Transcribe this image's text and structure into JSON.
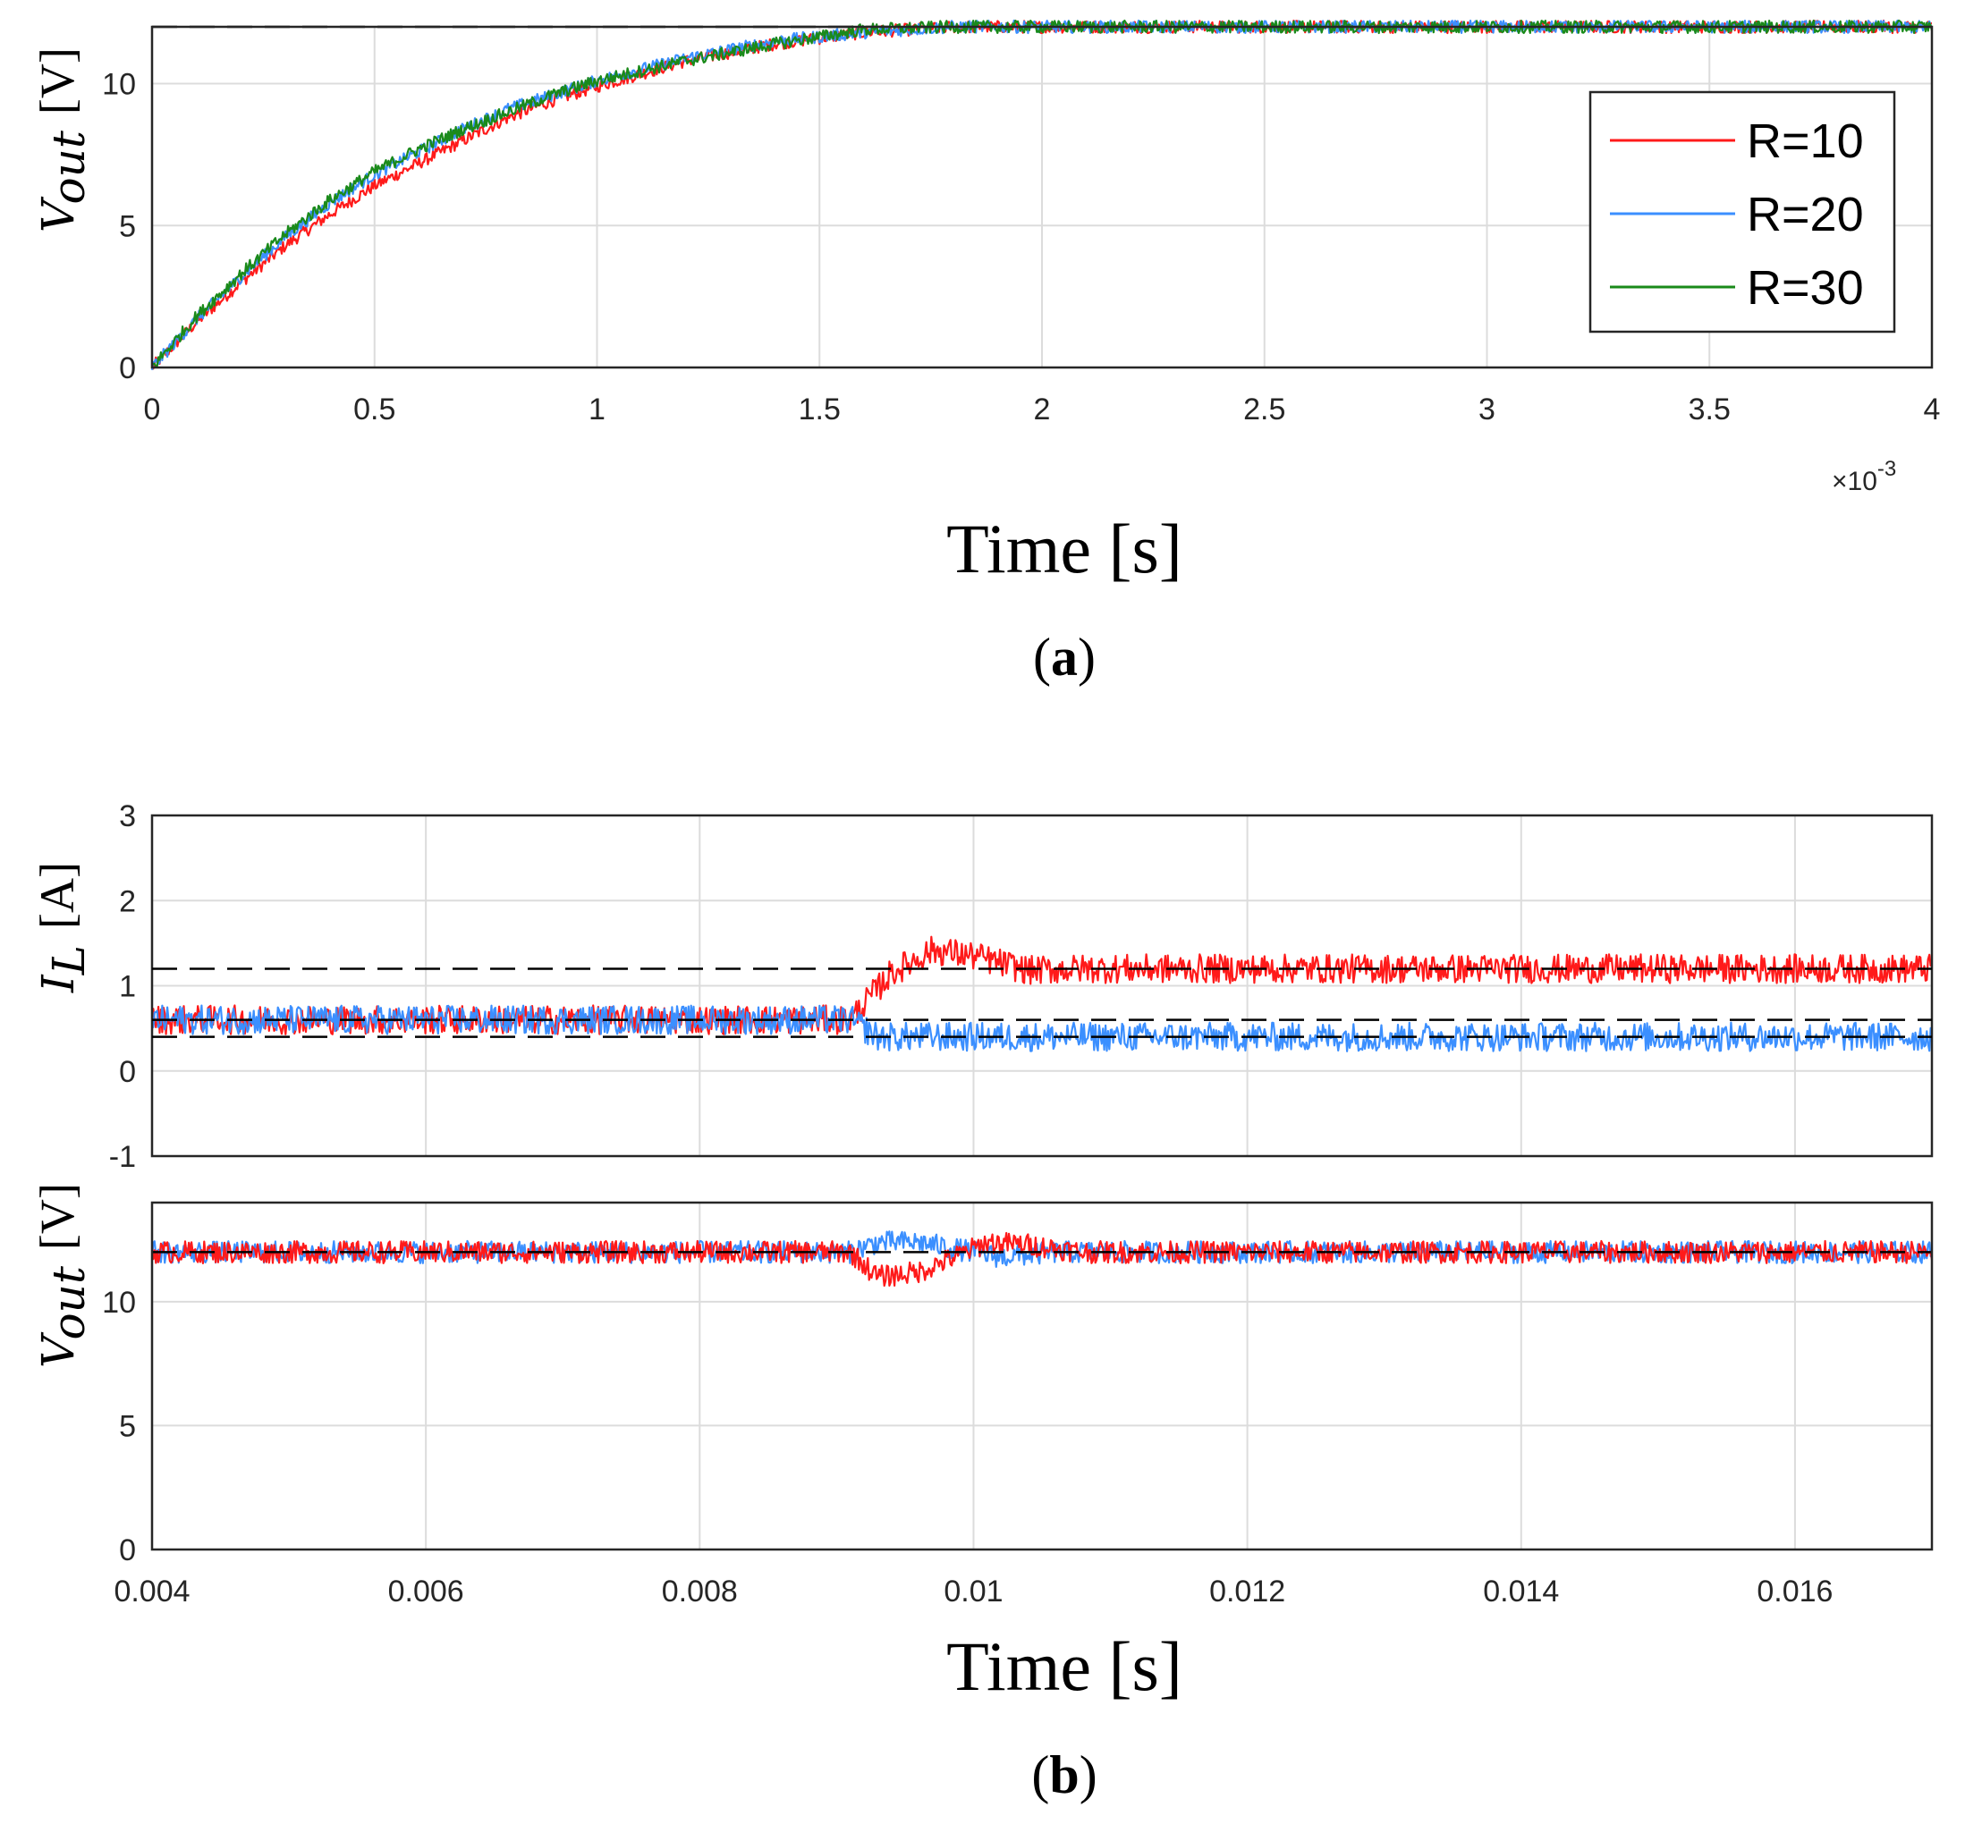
{
  "colors": {
    "red": "#ff1a1a",
    "blue": "#3b8fff",
    "green": "#1a8a1a",
    "ref": "#000000",
    "grid": "#dcdcdc"
  },
  "chart_data": [
    {
      "id": "a",
      "type": "line",
      "caption_letter": "a",
      "xlabel": "Time [s]",
      "ylabel_main": "V",
      "ylabel_sub": "out",
      "ylabel_unit": "[V]",
      "x_scale_label": "×10",
      "x_scale_exp": "-3",
      "xlim": [
        0,
        4
      ],
      "ylim": [
        0,
        12
      ],
      "xticks": [
        0,
        0.5,
        1,
        1.5,
        2,
        2.5,
        3,
        3.5,
        4
      ],
      "xtick_labels": [
        "0",
        "0.5",
        "1",
        "1.5",
        "2",
        "2.5",
        "3",
        "3.5",
        "4"
      ],
      "yticks": [
        0,
        5,
        10
      ],
      "ytick_labels": [
        "0",
        "5",
        "10"
      ],
      "grid": true,
      "legend_position": "top-right",
      "reference_lines": [
        12
      ],
      "series": [
        {
          "name": "R=10",
          "color": "red",
          "x": [
            0,
            0.1,
            0.2,
            0.3,
            0.4,
            0.5,
            0.6,
            0.7,
            0.8,
            0.9,
            1.0,
            1.2,
            1.4,
            1.6,
            1.8,
            2.0,
            4.0
          ],
          "values": [
            0,
            1.6,
            3.0,
            4.3,
            5.4,
            6.4,
            7.2,
            8.0,
            8.8,
            9.4,
            9.9,
            10.8,
            11.4,
            11.8,
            12.0,
            12.0,
            12.0
          ]
        },
        {
          "name": "R=20",
          "color": "blue",
          "x": [
            0,
            0.1,
            0.2,
            0.3,
            0.4,
            0.5,
            0.6,
            0.7,
            0.8,
            0.9,
            1.0,
            1.2,
            1.4,
            1.6,
            1.8,
            2.0,
            4.0
          ],
          "values": [
            0,
            1.7,
            3.2,
            4.6,
            5.8,
            6.8,
            7.6,
            8.4,
            9.1,
            9.6,
            10.1,
            10.9,
            11.5,
            11.8,
            12.0,
            12.0,
            12.0
          ]
        },
        {
          "name": "R=30",
          "color": "green",
          "x": [
            0,
            0.1,
            0.2,
            0.3,
            0.4,
            0.5,
            0.6,
            0.7,
            0.8,
            0.9,
            1.0,
            1.2,
            1.4,
            1.6,
            1.8,
            2.0,
            4.0
          ],
          "values": [
            0,
            1.8,
            3.3,
            4.7,
            5.9,
            6.9,
            7.7,
            8.4,
            9.0,
            9.6,
            10.1,
            10.8,
            11.4,
            11.9,
            12.0,
            12.0,
            12.0
          ]
        }
      ]
    },
    {
      "id": "b-top",
      "type": "line",
      "ylabel_main": "I",
      "ylabel_sub": "L",
      "ylabel_unit": "[A]",
      "xlim": [
        0.004,
        0.017
      ],
      "ylim": [
        -1,
        3
      ],
      "xticks": [
        0.004,
        0.006,
        0.008,
        0.01,
        0.012,
        0.014,
        0.016
      ],
      "yticks": [
        -1,
        0,
        1,
        2,
        3
      ],
      "ytick_labels": [
        "-1",
        "0",
        "1",
        "2",
        "3"
      ],
      "grid": true,
      "reference_lines": [
        1.2,
        0.6,
        0.4
      ],
      "series": [
        {
          "name": "R=10",
          "color": "red",
          "x": [
            0.004,
            0.0091,
            0.0094,
            0.0097,
            0.01,
            0.0104,
            0.0108,
            0.017
          ],
          "values": [
            0.6,
            0.6,
            1.15,
            1.42,
            1.35,
            1.18,
            1.2,
            1.2
          ]
        },
        {
          "name": "R=20",
          "color": "blue",
          "x": [
            0.004,
            0.0091,
            0.0093,
            0.0096,
            0.017
          ],
          "values": [
            0.6,
            0.6,
            0.4,
            0.4,
            0.4
          ]
        }
      ]
    },
    {
      "id": "b-bottom",
      "type": "line",
      "caption_letter": "b",
      "xlabel": "Time [s]",
      "ylabel_main": "V",
      "ylabel_sub": "out",
      "ylabel_unit": "[V]",
      "xlim": [
        0.004,
        0.017
      ],
      "ylim": [
        0,
        14
      ],
      "xticks": [
        0.004,
        0.006,
        0.008,
        0.01,
        0.012,
        0.014,
        0.016
      ],
      "xtick_labels": [
        "0.004",
        "0.006",
        "0.008",
        "0.01",
        "0.012",
        "0.014",
        "0.016"
      ],
      "yticks": [
        0,
        5,
        10
      ],
      "ytick_labels": [
        "0",
        "5",
        "10"
      ],
      "grid": true,
      "reference_lines": [
        12
      ],
      "series": [
        {
          "name": "R=20",
          "color": "blue",
          "x": [
            0.004,
            0.0091,
            0.0093,
            0.0096,
            0.0099,
            0.0102,
            0.0106,
            0.017
          ],
          "values": [
            12.0,
            12.0,
            12.4,
            12.4,
            12.1,
            11.8,
            12.0,
            12.0
          ]
        },
        {
          "name": "R=10",
          "color": "red",
          "x": [
            0.004,
            0.0091,
            0.0093,
            0.0096,
            0.0099,
            0.0101,
            0.0104,
            0.0108,
            0.017
          ],
          "values": [
            12.0,
            12.0,
            11.0,
            11.2,
            11.9,
            12.4,
            12.3,
            12.0,
            12.0
          ]
        }
      ]
    }
  ]
}
